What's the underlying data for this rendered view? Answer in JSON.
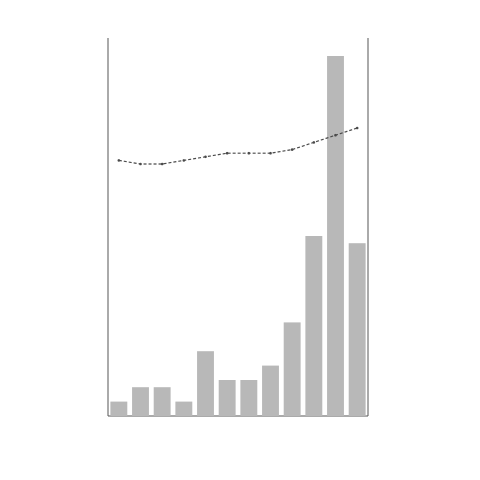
{
  "chart_data": {
    "type": "bar",
    "title": "",
    "xlabel": "",
    "ylabel_left": "",
    "ylabel_right": "",
    "categories": [
      "",
      "",
      "",
      "",
      "",
      "",
      "",
      "",
      "",
      "",
      "",
      ""
    ],
    "series": [
      {
        "type": "bar",
        "axis": "left",
        "values": [
          4,
          8,
          8,
          4,
          18,
          10,
          10,
          14,
          26,
          50,
          100,
          48
        ]
      },
      {
        "type": "line",
        "axis": "right",
        "values": [
          71,
          70,
          70,
          71,
          72,
          73,
          73,
          73,
          74,
          76,
          78,
          80
        ]
      }
    ],
    "ylim_left": [
      0,
      105
    ],
    "ylim_right": [
      0,
      105
    ],
    "grid": false,
    "legend": "top-left",
    "colors": {
      "bar": "#b8b8b8",
      "line": "#4a4a4a",
      "axis": "#555555"
    }
  }
}
